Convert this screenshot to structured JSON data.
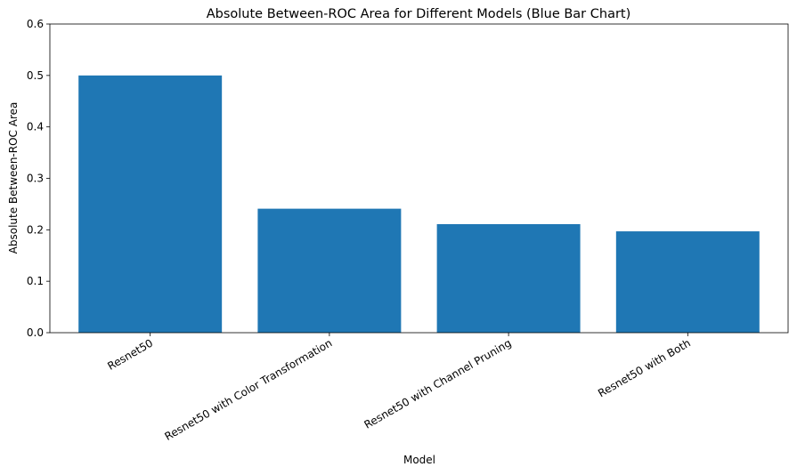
{
  "chart_data": {
    "type": "bar",
    "title": "Absolute Between-ROC Area for Different Models (Blue Bar Chart)",
    "x_label": "Model",
    "y_label": "Absolute Between-ROC Area",
    "categories": [
      "Resnet50",
      "Resnet50 with Color Transformation",
      "Resnet50 with Channel Pruning",
      "Resnet50 with Both"
    ],
    "values": [
      0.5,
      0.241,
      0.211,
      0.197
    ],
    "color": "#1f77b4",
    "ylim": [
      0,
      0.6
    ],
    "yticks": [
      {
        "value": 0,
        "label": "0.0"
      },
      0.1,
      0.2,
      0.3,
      0.4,
      0.5,
      0.6
    ],
    "grid": false
  }
}
